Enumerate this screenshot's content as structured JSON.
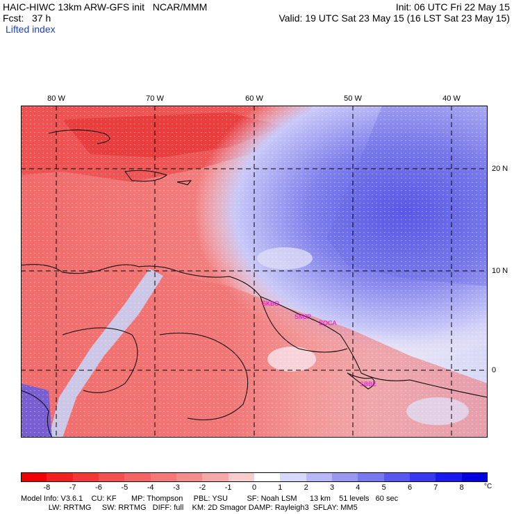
{
  "header": {
    "line1_left": "HAIC-HIWC 13km ARW-GFS init   NCAR/MMM",
    "line1_right": "Init: 06 UTC Fri 22 May 15",
    "line2_left": "Fcst:   37 h",
    "line2_right": "Valid: 19 UTC Sat 23 May 15 (16 LST Sat 23 May 15)",
    "field_name": "Lifted index"
  },
  "map": {
    "lon_labels": [
      "80 W",
      "70 W",
      "60 W",
      "50 W",
      "40 W"
    ],
    "lat_labels": [
      "20 N",
      "10 N",
      "0"
    ],
    "stations": [
      "SKBO",
      "SMJP",
      "SOCA",
      "SBBE"
    ],
    "colors": {
      "warm_dark": "#e83030",
      "warm_mid": "#f06060",
      "warm_light": "#f8a0a0",
      "neutral": "#fbe8e8",
      "cool_light": "#c8c8f8",
      "cool_mid": "#7878e8",
      "cool_dark": "#4040e0",
      "coast": "#000000"
    }
  },
  "colorbar": {
    "ticks": [
      "-8",
      "-7",
      "-6",
      "-5",
      "-4",
      "-3",
      "-2",
      "-1",
      "0",
      "1",
      "2",
      "3",
      "4",
      "5",
      "6",
      "7",
      "8"
    ],
    "unit": "°C",
    "colors": [
      "#f00000",
      "#f42020",
      "#f43838",
      "#f45050",
      "#f46464",
      "#f47878",
      "#f48c8c",
      "#f4a8a8",
      "#f8cccc",
      "#ffffff",
      "#d8d8fc",
      "#b8b8f8",
      "#9898f0",
      "#7878f0",
      "#5858f0",
      "#3838f0",
      "#1818f0",
      "#0000e0"
    ]
  },
  "footer": {
    "line1": "Model Info: V3.6.1    CU: KF       MP: Thompson     PBL: YSU         SF: Noah LSM      13 km    51 levels   60 sec",
    "line2": "             LW: RRTMG     SW: RRTMG   DIFF: full    KM: 2D Smagor DAMP: Rayleigh3  SFLAY: MM5"
  }
}
